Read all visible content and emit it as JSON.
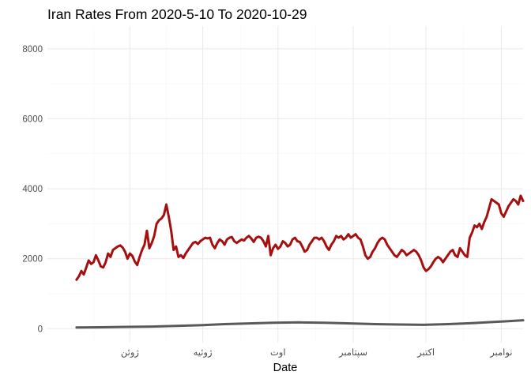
{
  "chart_data": {
    "type": "line",
    "title": "Iran Rates From 2020-5-10 To 2020-10-29",
    "xlabel": "Date",
    "ylabel": "",
    "x_range": [
      "2020-04-28",
      "2020-11-10"
    ],
    "ylim": [
      -400,
      8650
    ],
    "y_ticks": [
      0,
      2000,
      4000,
      6000,
      8000
    ],
    "x_ticks": [
      {
        "date": "2020-06-01",
        "label": "ژوئن"
      },
      {
        "date": "2020-07-01",
        "label": "ژوئیه"
      },
      {
        "date": "2020-08-01",
        "label": "اوت"
      },
      {
        "date": "2020-09-01",
        "label": "سپتامبر"
      },
      {
        "date": "2020-10-01",
        "label": "اکتبر"
      },
      {
        "date": "2020-11-01",
        "label": "نوامبر"
      }
    ],
    "grid": true,
    "series": [
      {
        "color": "#a50f0f",
        "points": [
          [
            "2020-05-10",
            1400
          ],
          [
            "2020-05-11",
            1500
          ],
          [
            "2020-05-12",
            1650
          ],
          [
            "2020-05-13",
            1550
          ],
          [
            "2020-05-14",
            1750
          ],
          [
            "2020-05-15",
            1950
          ],
          [
            "2020-05-16",
            1850
          ],
          [
            "2020-05-17",
            1900
          ],
          [
            "2020-05-18",
            2100
          ],
          [
            "2020-05-19",
            1950
          ],
          [
            "2020-05-20",
            1780
          ],
          [
            "2020-05-21",
            1750
          ],
          [
            "2020-05-22",
            1900
          ],
          [
            "2020-05-23",
            2150
          ],
          [
            "2020-05-24",
            2050
          ],
          [
            "2020-05-25",
            2250
          ],
          [
            "2020-05-26",
            2300
          ],
          [
            "2020-05-27",
            2350
          ],
          [
            "2020-05-28",
            2380
          ],
          [
            "2020-05-29",
            2320
          ],
          [
            "2020-05-30",
            2200
          ],
          [
            "2020-05-31",
            2000
          ],
          [
            "2020-06-01",
            2150
          ],
          [
            "2020-06-02",
            2080
          ],
          [
            "2020-06-03",
            1920
          ],
          [
            "2020-06-04",
            1820
          ],
          [
            "2020-06-05",
            2050
          ],
          [
            "2020-06-06",
            2250
          ],
          [
            "2020-06-07",
            2400
          ],
          [
            "2020-06-08",
            2800
          ],
          [
            "2020-06-09",
            2300
          ],
          [
            "2020-06-10",
            2450
          ],
          [
            "2020-06-11",
            2650
          ],
          [
            "2020-06-12",
            3000
          ],
          [
            "2020-06-13",
            3100
          ],
          [
            "2020-06-14",
            3150
          ],
          [
            "2020-06-15",
            3250
          ],
          [
            "2020-06-16",
            3550
          ],
          [
            "2020-06-17",
            3200
          ],
          [
            "2020-06-18",
            2800
          ],
          [
            "2020-06-19",
            2250
          ],
          [
            "2020-06-20",
            2350
          ],
          [
            "2020-06-21",
            2050
          ],
          [
            "2020-06-22",
            2100
          ],
          [
            "2020-06-23",
            2020
          ],
          [
            "2020-06-24",
            2150
          ],
          [
            "2020-06-25",
            2250
          ],
          [
            "2020-06-26",
            2350
          ],
          [
            "2020-06-27",
            2450
          ],
          [
            "2020-06-28",
            2480
          ],
          [
            "2020-06-29",
            2420
          ],
          [
            "2020-06-30",
            2500
          ],
          [
            "2020-07-01",
            2550
          ],
          [
            "2020-07-02",
            2600
          ],
          [
            "2020-07-03",
            2580
          ],
          [
            "2020-07-04",
            2600
          ],
          [
            "2020-07-05",
            2400
          ],
          [
            "2020-07-06",
            2300
          ],
          [
            "2020-07-07",
            2450
          ],
          [
            "2020-07-08",
            2550
          ],
          [
            "2020-07-09",
            2500
          ],
          [
            "2020-07-10",
            2400
          ],
          [
            "2020-07-11",
            2550
          ],
          [
            "2020-07-12",
            2600
          ],
          [
            "2020-07-13",
            2620
          ],
          [
            "2020-07-14",
            2500
          ],
          [
            "2020-07-15",
            2450
          ],
          [
            "2020-07-16",
            2500
          ],
          [
            "2020-07-17",
            2550
          ],
          [
            "2020-07-18",
            2520
          ],
          [
            "2020-07-19",
            2600
          ],
          [
            "2020-07-20",
            2650
          ],
          [
            "2020-07-21",
            2580
          ],
          [
            "2020-07-22",
            2480
          ],
          [
            "2020-07-23",
            2600
          ],
          [
            "2020-07-24",
            2630
          ],
          [
            "2020-07-25",
            2600
          ],
          [
            "2020-07-26",
            2500
          ],
          [
            "2020-07-27",
            2350
          ],
          [
            "2020-07-28",
            2650
          ],
          [
            "2020-07-29",
            2100
          ],
          [
            "2020-07-30",
            2300
          ],
          [
            "2020-07-31",
            2400
          ],
          [
            "2020-08-01",
            2280
          ],
          [
            "2020-08-02",
            2350
          ],
          [
            "2020-08-03",
            2500
          ],
          [
            "2020-08-04",
            2450
          ],
          [
            "2020-08-05",
            2350
          ],
          [
            "2020-08-06",
            2400
          ],
          [
            "2020-08-07",
            2550
          ],
          [
            "2020-08-08",
            2600
          ],
          [
            "2020-08-09",
            2500
          ],
          [
            "2020-08-10",
            2480
          ],
          [
            "2020-08-11",
            2350
          ],
          [
            "2020-08-12",
            2200
          ],
          [
            "2020-08-13",
            2250
          ],
          [
            "2020-08-14",
            2400
          ],
          [
            "2020-08-15",
            2500
          ],
          [
            "2020-08-16",
            2600
          ],
          [
            "2020-08-17",
            2600
          ],
          [
            "2020-08-18",
            2550
          ],
          [
            "2020-08-19",
            2600
          ],
          [
            "2020-08-20",
            2500
          ],
          [
            "2020-08-21",
            2350
          ],
          [
            "2020-08-22",
            2250
          ],
          [
            "2020-08-23",
            2400
          ],
          [
            "2020-08-24",
            2500
          ],
          [
            "2020-08-25",
            2650
          ],
          [
            "2020-08-26",
            2600
          ],
          [
            "2020-08-27",
            2650
          ],
          [
            "2020-08-28",
            2550
          ],
          [
            "2020-08-29",
            2600
          ],
          [
            "2020-08-30",
            2700
          ],
          [
            "2020-08-31",
            2600
          ],
          [
            "2020-09-01",
            2650
          ],
          [
            "2020-09-02",
            2700
          ],
          [
            "2020-09-03",
            2600
          ],
          [
            "2020-09-04",
            2550
          ],
          [
            "2020-09-05",
            2350
          ],
          [
            "2020-09-06",
            2100
          ],
          [
            "2020-09-07",
            2000
          ],
          [
            "2020-09-08",
            2050
          ],
          [
            "2020-09-09",
            2200
          ],
          [
            "2020-09-10",
            2300
          ],
          [
            "2020-09-11",
            2450
          ],
          [
            "2020-09-12",
            2550
          ],
          [
            "2020-09-13",
            2600
          ],
          [
            "2020-09-14",
            2550
          ],
          [
            "2020-09-15",
            2400
          ],
          [
            "2020-09-16",
            2300
          ],
          [
            "2020-09-17",
            2200
          ],
          [
            "2020-09-18",
            2100
          ],
          [
            "2020-09-19",
            2050
          ],
          [
            "2020-09-20",
            2150
          ],
          [
            "2020-09-21",
            2250
          ],
          [
            "2020-09-22",
            2200
          ],
          [
            "2020-09-23",
            2100
          ],
          [
            "2020-09-24",
            2150
          ],
          [
            "2020-09-25",
            2200
          ],
          [
            "2020-09-26",
            2250
          ],
          [
            "2020-09-27",
            2200
          ],
          [
            "2020-09-28",
            2100
          ],
          [
            "2020-09-29",
            1950
          ],
          [
            "2020-09-30",
            1750
          ],
          [
            "2020-10-01",
            1650
          ],
          [
            "2020-10-02",
            1700
          ],
          [
            "2020-10-03",
            1780
          ],
          [
            "2020-10-04",
            1900
          ],
          [
            "2020-10-05",
            2000
          ],
          [
            "2020-10-06",
            2050
          ],
          [
            "2020-10-07",
            2000
          ],
          [
            "2020-10-08",
            1900
          ],
          [
            "2020-10-09",
            2000
          ],
          [
            "2020-10-10",
            2100
          ],
          [
            "2020-10-11",
            2200
          ],
          [
            "2020-10-12",
            2250
          ],
          [
            "2020-10-13",
            2100
          ],
          [
            "2020-10-14",
            2050
          ],
          [
            "2020-10-15",
            2300
          ],
          [
            "2020-10-16",
            2200
          ],
          [
            "2020-10-17",
            2100
          ],
          [
            "2020-10-18",
            2050
          ],
          [
            "2020-10-19",
            2600
          ],
          [
            "2020-10-20",
            2750
          ],
          [
            "2020-10-21",
            2950
          ],
          [
            "2020-10-22",
            2900
          ],
          [
            "2020-10-23",
            3000
          ],
          [
            "2020-10-24",
            2850
          ],
          [
            "2020-10-25",
            3050
          ],
          [
            "2020-10-26",
            3200
          ],
          [
            "2020-10-27",
            3450
          ],
          [
            "2020-10-28",
            3700
          ],
          [
            "2020-10-29",
            3650
          ],
          [
            "2020-10-30",
            3600
          ],
          [
            "2020-10-31",
            3550
          ],
          [
            "2020-11-01",
            3300
          ],
          [
            "2020-11-02",
            3200
          ],
          [
            "2020-11-03",
            3350
          ],
          [
            "2020-11-04",
            3500
          ],
          [
            "2020-11-05",
            3600
          ],
          [
            "2020-11-06",
            3700
          ],
          [
            "2020-11-07",
            3650
          ],
          [
            "2020-11-08",
            3550
          ],
          [
            "2020-11-09",
            3800
          ],
          [
            "2020-11-10",
            3650
          ]
        ]
      },
      {
        "color": "#595959",
        "points": [
          [
            "2020-05-10",
            35
          ],
          [
            "2020-05-20",
            40
          ],
          [
            "2020-05-30",
            50
          ],
          [
            "2020-06-10",
            60
          ],
          [
            "2020-06-20",
            80
          ],
          [
            "2020-06-30",
            100
          ],
          [
            "2020-07-10",
            130
          ],
          [
            "2020-07-20",
            150
          ],
          [
            "2020-07-30",
            170
          ],
          [
            "2020-08-10",
            180
          ],
          [
            "2020-08-20",
            170
          ],
          [
            "2020-08-31",
            150
          ],
          [
            "2020-09-10",
            130
          ],
          [
            "2020-09-20",
            120
          ],
          [
            "2020-09-30",
            110
          ],
          [
            "2020-10-10",
            130
          ],
          [
            "2020-10-20",
            160
          ],
          [
            "2020-10-31",
            200
          ],
          [
            "2020-11-10",
            240
          ]
        ]
      }
    ]
  }
}
